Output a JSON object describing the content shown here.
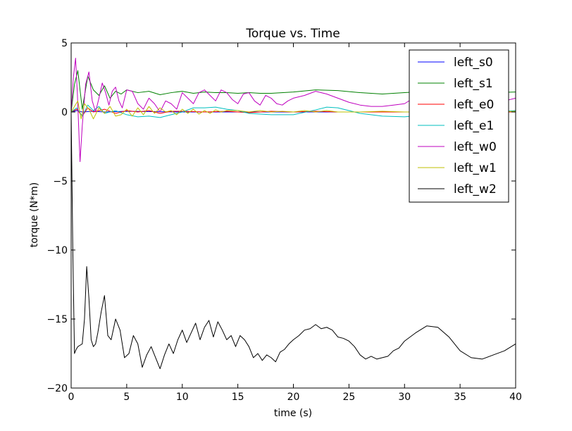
{
  "chart_data": {
    "type": "line",
    "title": "Torque vs. Time",
    "xlabel": "time (s)",
    "ylabel": "torque (N*m)",
    "xlim": [
      0,
      40
    ],
    "ylim": [
      -20,
      5
    ],
    "xticks": [
      0,
      5,
      10,
      15,
      20,
      25,
      30,
      35,
      40
    ],
    "yticks": [
      -20,
      -15,
      -10,
      -5,
      0,
      5
    ],
    "grid": false,
    "legend_position": "top-right",
    "series": [
      {
        "name": "left_s0",
        "color": "#0000ff",
        "x": [
          0,
          0.5,
          1,
          2,
          3,
          5,
          10,
          15,
          20,
          25,
          30,
          35,
          40
        ],
        "y": [
          0,
          0.1,
          0,
          0.05,
          0,
          0.05,
          0,
          0,
          0,
          0,
          0,
          0,
          0
        ]
      },
      {
        "name": "left_s1",
        "color": "#008000",
        "x": [
          0,
          0.3,
          0.6,
          1.0,
          1.5,
          2.0,
          2.5,
          3.0,
          3.5,
          4.0,
          4.5,
          5.0,
          6.0,
          7.0,
          8.0,
          9.0,
          10.0,
          11.0,
          12.0,
          13.0,
          14.0,
          15.0,
          16.0,
          17.0,
          18.0,
          20.0,
          22.0,
          24.0,
          26.0,
          28.0,
          30.0,
          32.0,
          34.0,
          36.0,
          38.0,
          40.0
        ],
        "y": [
          0,
          2.0,
          3.0,
          0.2,
          2.6,
          1.6,
          1.2,
          1.9,
          1.0,
          1.5,
          1.3,
          1.6,
          1.4,
          1.5,
          1.25,
          1.4,
          1.5,
          1.35,
          1.45,
          1.4,
          1.4,
          1.35,
          1.4,
          1.35,
          1.35,
          1.45,
          1.6,
          1.55,
          1.4,
          1.3,
          1.4,
          1.5,
          1.45,
          1.4,
          1.4,
          1.45
        ]
      },
      {
        "name": "left_e0",
        "color": "#ff0000",
        "x": [
          0,
          0.5,
          1,
          1.5,
          2,
          3,
          4,
          5,
          6,
          7,
          8,
          9,
          10,
          12,
          14,
          16,
          18,
          20,
          22,
          24,
          26,
          28,
          30,
          32,
          34,
          36,
          38,
          40
        ],
        "y": [
          0,
          0.2,
          -0.3,
          0.3,
          0,
          0.2,
          -0.1,
          0.1,
          0,
          0.1,
          -0.1,
          0.05,
          0.05,
          0,
          0.05,
          -0.05,
          0.05,
          0,
          0.05,
          0,
          0,
          0,
          0,
          0,
          0.05,
          0,
          0,
          0
        ]
      },
      {
        "name": "left_e1",
        "color": "#00bfbf",
        "x": [
          0,
          0.5,
          1,
          1.5,
          2,
          2.5,
          3,
          4,
          5,
          6,
          7,
          8,
          9,
          10,
          11,
          12,
          13,
          14,
          15,
          16,
          18,
          20,
          22,
          23,
          24,
          26,
          28,
          30,
          32,
          34,
          36,
          38,
          40
        ],
        "y": [
          0,
          0.3,
          -0.3,
          0.5,
          0.1,
          0.4,
          -0.1,
          0.1,
          -0.2,
          -0.35,
          -0.3,
          -0.4,
          -0.2,
          0.0,
          0.3,
          0.3,
          0.35,
          0.2,
          0.1,
          -0.1,
          -0.2,
          -0.2,
          0.15,
          0.35,
          0.3,
          -0.1,
          -0.3,
          -0.35,
          -0.2,
          -0.05,
          0.0,
          0.0,
          0.1
        ]
      },
      {
        "name": "left_w0",
        "color": "#bf00bf",
        "x": [
          0,
          0.2,
          0.4,
          0.55,
          0.8,
          1.0,
          1.3,
          1.6,
          1.9,
          2.2,
          2.5,
          2.8,
          3.1,
          3.4,
          3.7,
          4.0,
          4.3,
          4.6,
          5.0,
          5.5,
          6.0,
          6.5,
          7.0,
          7.5,
          8.0,
          8.5,
          9.0,
          9.5,
          10.0,
          10.5,
          11.0,
          11.5,
          12.0,
          12.5,
          13.0,
          13.5,
          14.0,
          14.5,
          15.0,
          15.5,
          16.0,
          16.5,
          17.0,
          17.5,
          18.0,
          18.5,
          19.0,
          19.5,
          20.0,
          21.0,
          22.0,
          23.0,
          24.0,
          25.0,
          26.0,
          27.0,
          28.0,
          29.0,
          30.0,
          31.0,
          32.0,
          33.0,
          34.0,
          35.0,
          36.0,
          37.0,
          38.0,
          39.0,
          40.0
        ],
        "y": [
          0,
          2.5,
          3.9,
          1.5,
          -3.6,
          -1.0,
          2.0,
          2.9,
          0.8,
          0.0,
          1.0,
          2.1,
          1.4,
          0.5,
          1.5,
          1.8,
          0.8,
          0.3,
          1.6,
          1.5,
          0.6,
          0.2,
          1.0,
          0.6,
          0.0,
          0.8,
          0.6,
          0.2,
          1.4,
          1.0,
          0.6,
          1.4,
          1.6,
          1.2,
          0.8,
          1.6,
          1.4,
          0.9,
          0.6,
          1.3,
          1.4,
          0.8,
          0.5,
          1.2,
          1.0,
          0.6,
          0.5,
          0.8,
          1.0,
          1.2,
          1.5,
          1.3,
          1.0,
          0.7,
          0.5,
          0.4,
          0.4,
          0.5,
          0.6,
          1.1,
          1.3,
          0.8,
          0.4,
          0.6,
          0.9,
          1.1,
          0.9,
          0.8,
          1.0
        ]
      },
      {
        "name": "left_w1",
        "color": "#bfbf00",
        "x": [
          0,
          0.3,
          0.6,
          0.9,
          1.2,
          1.6,
          2.0,
          2.5,
          3.0,
          3.5,
          4.0,
          4.5,
          5.0,
          5.5,
          6.0,
          6.5,
          7.0,
          7.5,
          8.0,
          8.5,
          9.0,
          9.5,
          10.0,
          10.5,
          11.0,
          11.5,
          12.0,
          12.5,
          13.0,
          13.5,
          14.0,
          15.0,
          16.0,
          17.0,
          18.0,
          19.0,
          20.0,
          21.0,
          22.0,
          23.0,
          24.0,
          25.0,
          26.0,
          28.0,
          30.0,
          32.0,
          34.0,
          36.0,
          38.0,
          40.0
        ],
        "y": [
          0,
          0.4,
          0.8,
          -0.5,
          0.6,
          0.2,
          -0.5,
          0.3,
          -0.1,
          0.4,
          -0.3,
          -0.2,
          0.2,
          -0.3,
          0.3,
          -0.2,
          0.4,
          -0.1,
          0.3,
          0.0,
          0.1,
          -0.2,
          0.2,
          -0.1,
          0.2,
          -0.15,
          0.1,
          -0.1,
          0.15,
          0.0,
          0.1,
          0.1,
          0.0,
          0.1,
          0.0,
          0.05,
          0.0,
          0.1,
          0.0,
          0.1,
          0.0,
          0.0,
          0.0,
          0.05,
          0.0,
          0.0,
          0.0,
          0.05,
          0.0,
          0.05
        ]
      },
      {
        "name": "left_w2",
        "color": "#000000",
        "x": [
          0,
          0.15,
          0.3,
          0.45,
          0.6,
          0.8,
          1.0,
          1.2,
          1.4,
          1.6,
          1.8,
          2.0,
          2.2,
          2.4,
          2.7,
          3.0,
          3.3,
          3.6,
          4.0,
          4.4,
          4.8,
          5.2,
          5.6,
          6.0,
          6.4,
          6.8,
          7.2,
          7.6,
          8.0,
          8.4,
          8.8,
          9.2,
          9.6,
          10.0,
          10.4,
          10.8,
          11.2,
          11.6,
          12.0,
          12.4,
          12.8,
          13.2,
          13.6,
          14.0,
          14.4,
          14.8,
          15.2,
          15.6,
          16.0,
          16.4,
          16.8,
          17.2,
          17.6,
          18.0,
          18.4,
          18.8,
          19.2,
          19.6,
          20.0,
          20.5,
          21.0,
          21.5,
          22.0,
          22.5,
          23.0,
          23.5,
          24.0,
          24.5,
          25.0,
          25.5,
          26.0,
          26.5,
          27.0,
          27.5,
          28.0,
          28.5,
          29.0,
          29.5,
          30.0,
          31.0,
          32.0,
          33.0,
          34.0,
          35.0,
          36.0,
          37.0,
          38.0,
          39.0,
          40.0
        ],
        "y": [
          0,
          -10.0,
          -17.5,
          -17.2,
          -17.0,
          -16.9,
          -16.8,
          -15.0,
          -11.2,
          -13.5,
          -16.5,
          -17.0,
          -16.8,
          -16.0,
          -14.5,
          -13.3,
          -16.2,
          -16.5,
          -15.0,
          -15.8,
          -17.8,
          -17.5,
          -16.2,
          -16.8,
          -18.5,
          -17.6,
          -17.0,
          -17.8,
          -18.6,
          -17.6,
          -16.8,
          -17.5,
          -16.5,
          -15.8,
          -16.7,
          -16.0,
          -15.3,
          -16.5,
          -15.6,
          -15.1,
          -16.3,
          -15.2,
          -15.8,
          -16.5,
          -16.2,
          -17.0,
          -16.2,
          -16.5,
          -17.0,
          -17.8,
          -17.5,
          -18.0,
          -17.6,
          -17.8,
          -18.1,
          -17.4,
          -17.2,
          -16.8,
          -16.5,
          -16.2,
          -15.8,
          -15.7,
          -15.4,
          -15.7,
          -15.6,
          -15.8,
          -16.3,
          -16.4,
          -16.6,
          -17.0,
          -17.6,
          -17.9,
          -17.7,
          -17.9,
          -17.8,
          -17.7,
          -17.3,
          -17.1,
          -16.6,
          -16.0,
          -15.5,
          -15.6,
          -16.3,
          -17.3,
          -17.8,
          -17.9,
          -17.6,
          -17.3,
          -16.8
        ]
      }
    ]
  }
}
